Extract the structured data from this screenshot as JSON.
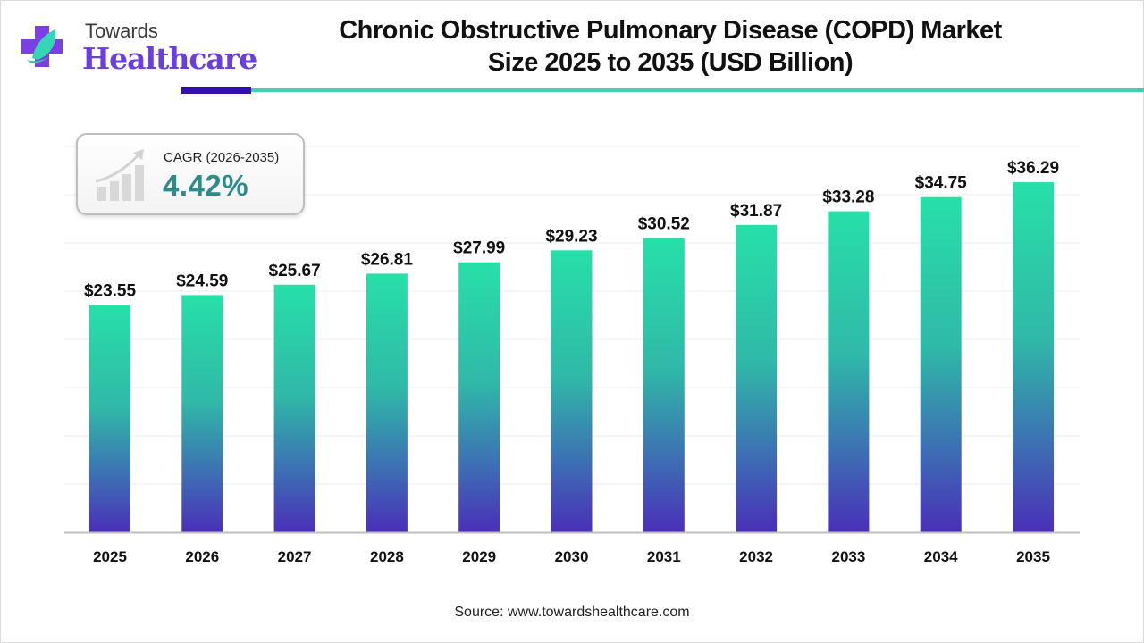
{
  "brand": {
    "line1": "Towards",
    "line2": "Healthcare",
    "colors": {
      "primary": "#6a3ee0",
      "accent": "#3fd2b0"
    }
  },
  "title": {
    "line1": "Chronic Obstructive Pulmonary Disease (COPD) Market",
    "line2": "Size 2025 to 2035 (USD Billion)"
  },
  "cagr": {
    "label": "CAGR (2026-2035)",
    "value": "4.42%",
    "icon": "growth-chart-icon"
  },
  "source": "Source: www.towardshealthcare.com",
  "colors": {
    "bar_top": "#27e0a8",
    "bar_mid": "#30b8a8",
    "bar_bottom": "#4a2fb8",
    "gridline": "#ececec",
    "axis": "#bfbfbf",
    "rule_dark": "#3412a8",
    "rule_teal": "#3fd2b0",
    "cagr_value": "#2e8b8b"
  },
  "chart_data": {
    "type": "bar",
    "title": "Chronic Obstructive Pulmonary Disease (COPD) Market Size 2025 to 2035 (USD Billion)",
    "xlabel": "",
    "ylabel": "",
    "categories": [
      "2025",
      "2026",
      "2027",
      "2028",
      "2029",
      "2030",
      "2031",
      "2032",
      "2033",
      "2034",
      "2035"
    ],
    "values": [
      23.55,
      24.59,
      25.67,
      26.81,
      27.99,
      29.23,
      30.52,
      31.87,
      33.28,
      34.75,
      36.29
    ],
    "data_labels": [
      "$23.55",
      "$24.59",
      "$25.67",
      "$26.81",
      "$27.99",
      "$29.23",
      "$30.52",
      "$31.87",
      "$33.28",
      "$34.75",
      "$36.29"
    ],
    "ylim": [
      0,
      40
    ],
    "y_grid_step": 5,
    "grid": true,
    "y_axis_labels_visible": false,
    "legend": "none"
  }
}
